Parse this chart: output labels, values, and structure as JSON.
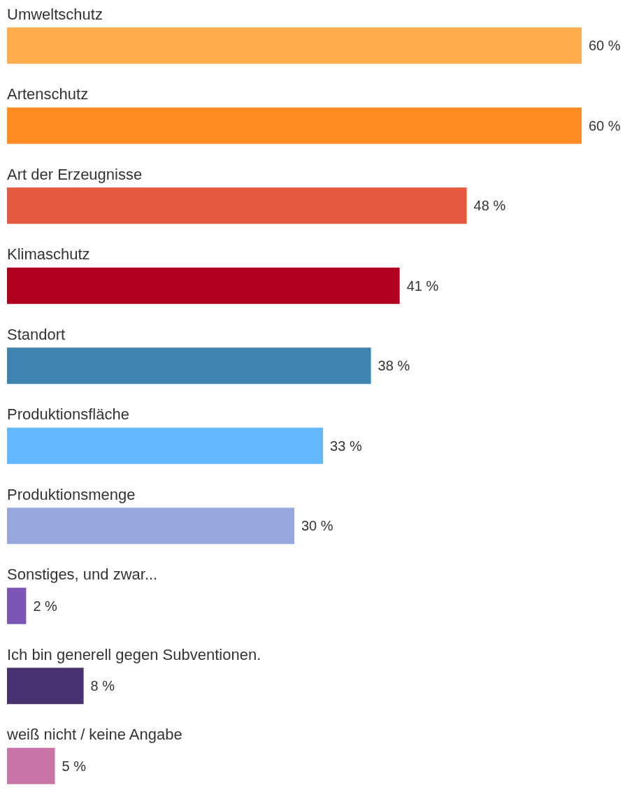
{
  "chart_data": {
    "type": "bar",
    "orientation": "horizontal",
    "categories": [
      "Umweltschutz",
      "Artenschutz",
      "Art der Erzeugnisse",
      "Klimaschutz",
      "Standort",
      "Produktionsfläche",
      "Produktionsmenge",
      "Sonstiges, und zwar...",
      "Ich bin generell gegen Subventionen.",
      "weiß nicht / keine Angabe"
    ],
    "values": [
      60,
      60,
      48,
      41,
      38,
      33,
      30,
      2,
      8,
      5
    ],
    "value_labels": [
      "60 %",
      "60 %",
      "48 %",
      "41 %",
      "38 %",
      "33 %",
      "30 %",
      "2 %",
      "8 %",
      "5 %"
    ],
    "colors": [
      "#ffad4d",
      "#ff8c22",
      "#e45a40",
      "#b00020",
      "#3f84ae",
      "#63b8ff",
      "#98a7dc",
      "#7b57b5",
      "#483270",
      "#c974a7"
    ],
    "grid": false
  }
}
